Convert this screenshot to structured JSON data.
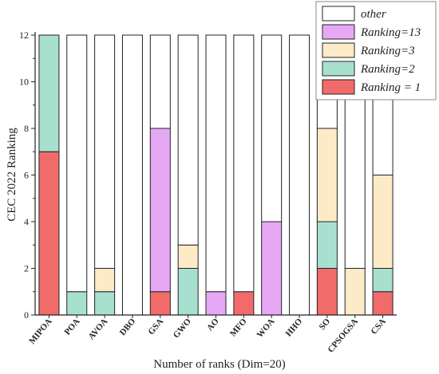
{
  "chart_data": {
    "type": "bar",
    "stacked": true,
    "xlabel": "Number of ranks (Dim=20)",
    "ylabel": "CEC 2022 Ranking",
    "ylim": [
      0,
      12
    ],
    "yticks": [
      0,
      2,
      4,
      6,
      8,
      10,
      12
    ],
    "categories": [
      "MIPOA",
      "POA",
      "AVOA",
      "DBO",
      "GSA",
      "GWO",
      "AO",
      "MFO",
      "WOA",
      "HHO",
      "SO",
      "CPSOGSA",
      "CSA"
    ],
    "series": [
      {
        "name": "Ranking = 1",
        "color": "#f26b6b",
        "values": [
          7,
          0,
          0,
          0,
          1,
          0,
          0,
          1,
          0,
          0,
          2,
          0,
          1
        ]
      },
      {
        "name": "Ranking=2",
        "color": "#a8e0d0",
        "values": [
          5,
          1,
          1,
          0,
          0,
          2,
          0,
          0,
          0,
          0,
          2,
          0,
          1
        ]
      },
      {
        "name": "Ranking=3",
        "color": "#fdebc8",
        "values": [
          0,
          0,
          1,
          0,
          0,
          1,
          0,
          0,
          0,
          0,
          4,
          2,
          4
        ]
      },
      {
        "name": "Ranking=13",
        "color": "#e6a8f5",
        "values": [
          0,
          0,
          0,
          0,
          7,
          0,
          1,
          0,
          4,
          0,
          0,
          0,
          0
        ]
      },
      {
        "name": "other",
        "color": "#ffffff",
        "values": [
          0,
          11,
          10,
          12,
          4,
          9,
          11,
          11,
          8,
          12,
          4,
          10,
          6
        ]
      }
    ],
    "legend_order": [
      "other",
      "Ranking=13",
      "Ranking=3",
      "Ranking=2",
      "Ranking = 1"
    ],
    "legend_position": "top-right",
    "grid": false
  }
}
